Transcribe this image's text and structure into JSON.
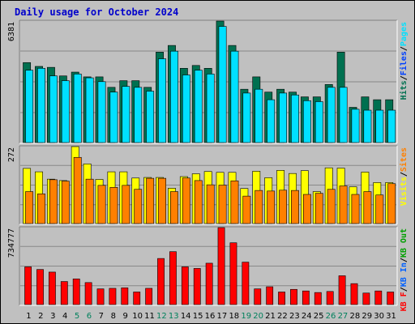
{
  "title": "Daily usage for October 2024",
  "colors": {
    "hits": "#007050",
    "files": "#0040ff",
    "pages": "#00e0ff",
    "visits": "#ffff00",
    "sites": "#ff8000",
    "kbf": "#ff0000",
    "weekend_day": "#00805c",
    "weekday": "#000000",
    "panel_bg": "#c0c0c0",
    "grid": "#888888"
  },
  "chart_data": [
    {
      "type": "bar",
      "panel": "top",
      "ymax_label": "6381",
      "ymax": 6381,
      "right_label": [
        {
          "text": "Hits",
          "color": "#007050"
        },
        {
          "text": "/",
          "color": "#000000"
        },
        {
          "text": "Files",
          "color": "#0040ff"
        },
        {
          "text": "/",
          "color": "#000000"
        },
        {
          "text": "Pages",
          "color": "#00e0ff"
        }
      ],
      "categories": [
        "1",
        "2",
        "3",
        "4",
        "5",
        "6",
        "7",
        "8",
        "9",
        "10",
        "11",
        "12",
        "13",
        "14",
        "15",
        "16",
        "17",
        "18",
        "19",
        "20",
        "21",
        "22",
        "23",
        "24",
        "25",
        "26",
        "27",
        "28",
        "29",
        "30",
        "31"
      ],
      "series": [
        {
          "name": "Hits",
          "values": [
            4200,
            4000,
            3950,
            3500,
            3700,
            3450,
            3450,
            2900,
            3250,
            3250,
            2900,
            4750,
            5100,
            3900,
            4050,
            3900,
            6381,
            5100,
            2800,
            3450,
            2650,
            2800,
            2650,
            2400,
            2400,
            3050,
            4750,
            1850,
            2400,
            2250,
            2250
          ]
        },
        {
          "name": "Files",
          "values": [
            3800,
            3900,
            3500,
            3250,
            3600,
            3400,
            3200,
            2650,
            2950,
            2900,
            2700,
            4400,
            4800,
            3550,
            3800,
            3600,
            6100,
            4800,
            2600,
            2800,
            2250,
            2600,
            2500,
            2200,
            2150,
            2900,
            2900,
            1750,
            1700,
            1700,
            1700
          ]
        },
        {
          "name": "Pages",
          "values": [
            3800,
            3900,
            3500,
            3250,
            3600,
            3400,
            3200,
            2650,
            2950,
            2900,
            2700,
            4400,
            4800,
            3550,
            3800,
            3600,
            6100,
            4800,
            2600,
            2800,
            2250,
            2600,
            2500,
            2200,
            2150,
            2900,
            2900,
            1750,
            1700,
            1700,
            1700
          ]
        }
      ]
    },
    {
      "type": "bar",
      "panel": "middle",
      "ymax_label": "272",
      "ymax": 272,
      "right_label": [
        {
          "text": "Visits",
          "color": "#ffff00"
        },
        {
          "text": "/",
          "color": "#000000"
        },
        {
          "text": "Sites",
          "color": "#ff8000"
        }
      ],
      "categories": [
        "1",
        "2",
        "3",
        "4",
        "5",
        "6",
        "7",
        "8",
        "9",
        "10",
        "11",
        "12",
        "13",
        "14",
        "15",
        "16",
        "17",
        "18",
        "19",
        "20",
        "21",
        "22",
        "23",
        "24",
        "25",
        "26",
        "27",
        "28",
        "29",
        "30",
        "31"
      ],
      "series": [
        {
          "name": "Visits",
          "values": [
            195,
            183,
            157,
            152,
            272,
            211,
            156,
            183,
            183,
            161,
            163,
            163,
            125,
            166,
            176,
            184,
            181,
            181,
            124,
            185,
            162,
            188,
            177,
            187,
            113,
            197,
            196,
            130,
            182,
            145,
            145
          ]
        },
        {
          "name": "Sites",
          "values": [
            113,
            105,
            155,
            150,
            234,
            157,
            135,
            128,
            135,
            121,
            160,
            160,
            113,
            161,
            152,
            137,
            136,
            151,
            97,
            117,
            115,
            118,
            117,
            103,
            107,
            121,
            133,
            103,
            113,
            101,
            141
          ]
        }
      ]
    },
    {
      "type": "bar",
      "panel": "bottom",
      "ymax_label": "734777",
      "ymax": 734777,
      "right_label": [
        {
          "text": "KB F",
          "color": "#ff0000"
        },
        {
          "text": "/",
          "color": "#000000"
        },
        {
          "text": "KB In",
          "color": "#0060ff"
        },
        {
          "text": "/",
          "color": "#000000"
        },
        {
          "text": "KB Out",
          "color": "#00a000"
        }
      ],
      "categories": [
        "1",
        "2",
        "3",
        "4",
        "5",
        "6",
        "7",
        "8",
        "9",
        "10",
        "11",
        "12",
        "13",
        "14",
        "15",
        "16",
        "17",
        "18",
        "19",
        "20",
        "21",
        "22",
        "23",
        "24",
        "25",
        "26",
        "27",
        "28",
        "29",
        "30",
        "31"
      ],
      "series": [
        {
          "name": "KB F",
          "values": [
            360000,
            335000,
            310000,
            220000,
            245000,
            210000,
            150000,
            155000,
            160000,
            120000,
            155000,
            440000,
            505000,
            360000,
            345000,
            395000,
            734777,
            590000,
            405000,
            150000,
            170000,
            120000,
            145000,
            130000,
            115000,
            125000,
            275000,
            200000,
            110000,
            130000,
            120000
          ]
        }
      ]
    }
  ],
  "x_axis": {
    "labels": [
      "1",
      "2",
      "3",
      "4",
      "5",
      "6",
      "7",
      "8",
      "9",
      "10",
      "11",
      "12",
      "13",
      "14",
      "15",
      "16",
      "17",
      "18",
      "19",
      "20",
      "21",
      "22",
      "23",
      "24",
      "25",
      "26",
      "27",
      "28",
      "29",
      "30",
      "31"
    ],
    "weekend": [
      5,
      6,
      12,
      13,
      19,
      20,
      26,
      27
    ]
  }
}
